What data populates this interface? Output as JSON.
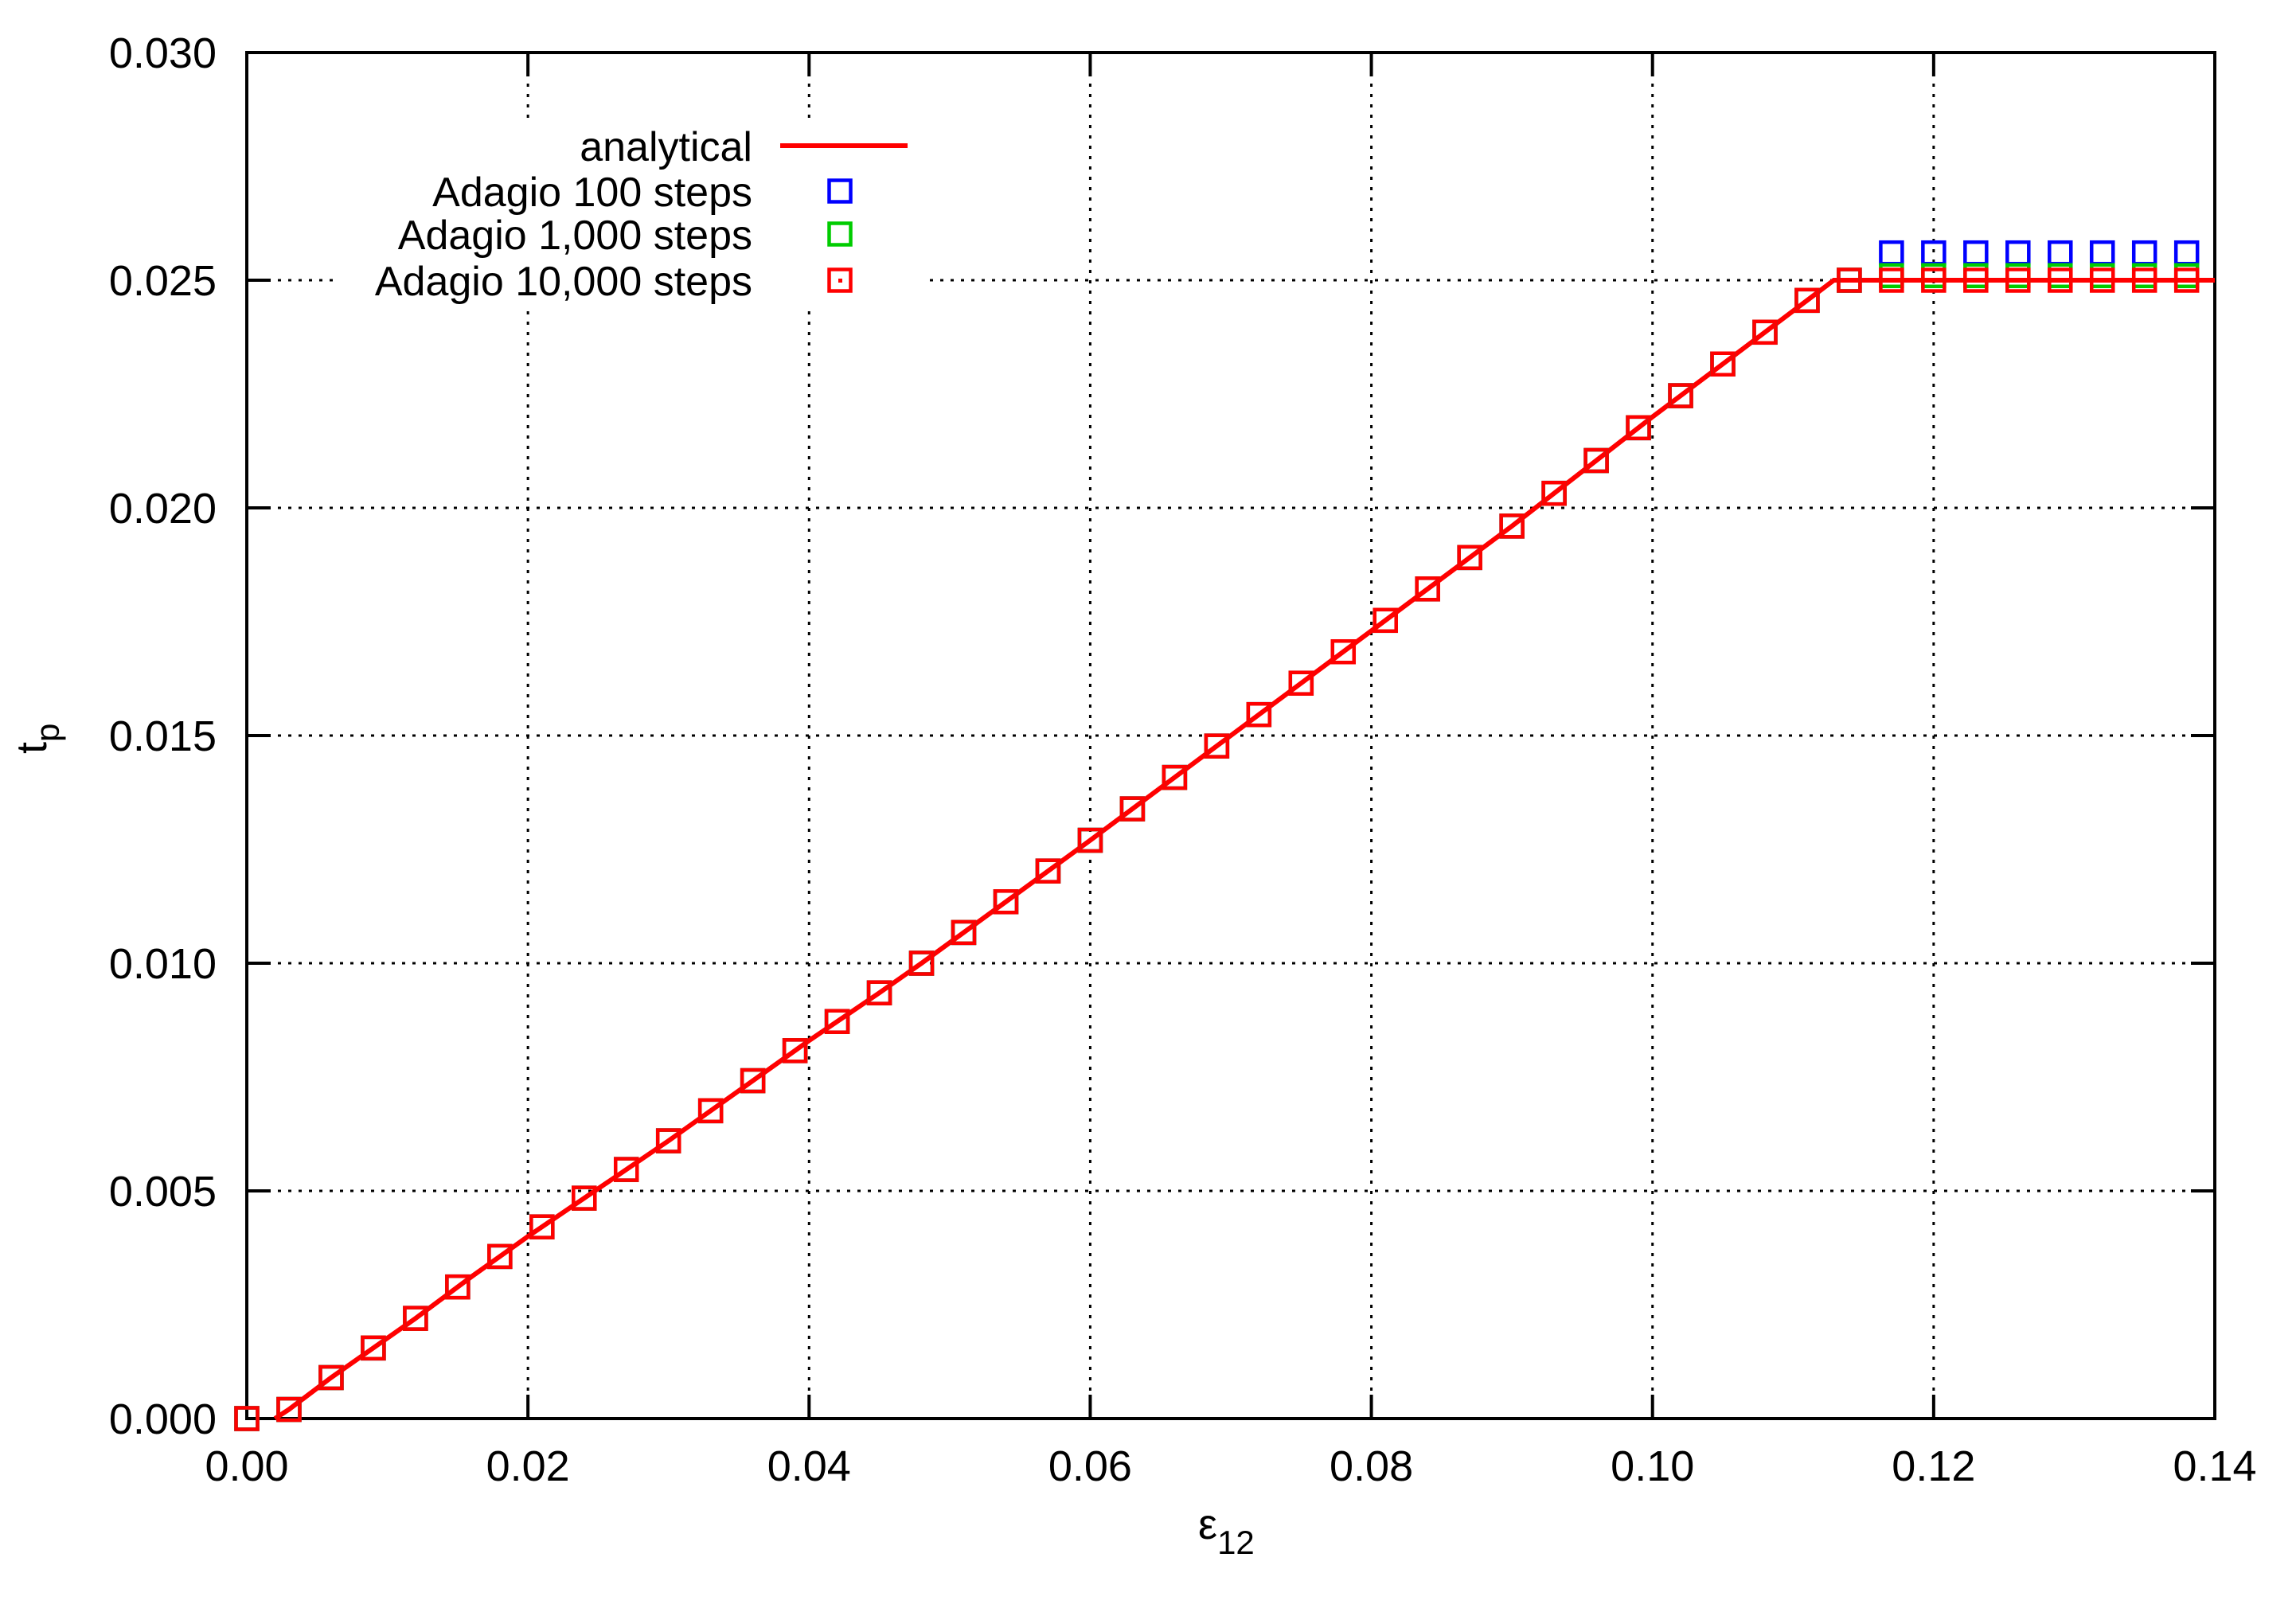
{
  "figure": {
    "background": "#ffffff",
    "border_color": "#000000"
  },
  "chart_data": {
    "type": "line",
    "title": "",
    "xlabel": "ε12",
    "xlabel_main": "ε",
    "xlabel_sub": "12",
    "ylabel": "tp",
    "ylabel_main": "t",
    "ylabel_sub": "p",
    "xlim": [
      0.0,
      0.14
    ],
    "ylim": [
      0.0,
      0.03
    ],
    "x_ticks": [
      0.0,
      0.02,
      0.04,
      0.06,
      0.08,
      0.1,
      0.12,
      0.14
    ],
    "x_tick_labels": [
      "0.00",
      "0.02",
      "0.04",
      "0.06",
      "0.08",
      "0.10",
      "0.12",
      "0.14"
    ],
    "y_ticks": [
      0.0,
      0.005,
      0.01,
      0.015,
      0.02,
      0.025,
      0.03
    ],
    "y_tick_labels": [
      "0.000",
      "0.005",
      "0.010",
      "0.015",
      "0.020",
      "0.025",
      "0.030"
    ],
    "grid": {
      "on": true,
      "style": "dotted",
      "color": "#000000",
      "x_lines": [
        0.02,
        0.04,
        0.06,
        0.08,
        0.1,
        0.12
      ],
      "y_lines": [
        0.005,
        0.01,
        0.015,
        0.02,
        0.025
      ]
    },
    "legend": {
      "position": "top-left-inside",
      "items": [
        {
          "label": "analytical",
          "color": "#ff0000",
          "sample": "line"
        },
        {
          "label": "Adagio 100 steps",
          "color": "#0000ff",
          "sample": "open-square"
        },
        {
          "label": "Adagio 1,000 steps",
          "color": "#00cc00",
          "sample": "open-square"
        },
        {
          "label": "Adagio 10,000 steps",
          "color": "#ff0000",
          "sample": "open-square-dot"
        }
      ]
    },
    "analytical_line": {
      "name": "analytical",
      "color": "#ff0000",
      "points": [
        [
          0.002,
          0.0
        ],
        [
          0.003,
          0.0002
        ],
        [
          0.006,
          0.0009
        ],
        [
          0.009,
          0.00155
        ],
        [
          0.012,
          0.0022
        ],
        [
          0.016,
          0.00312
        ],
        [
          0.02,
          0.004
        ],
        [
          0.025,
          0.00505
        ],
        [
          0.03,
          0.0061
        ],
        [
          0.035,
          0.0072
        ],
        [
          0.04,
          0.0083
        ],
        [
          0.045,
          0.00935
        ],
        [
          0.048,
          0.01
        ],
        [
          0.054,
          0.01135
        ],
        [
          0.06,
          0.0127
        ],
        [
          0.065,
          0.01385
        ],
        [
          0.07,
          0.015
        ],
        [
          0.075,
          0.01615
        ],
        [
          0.08,
          0.0173
        ],
        [
          0.085,
          0.01845
        ],
        [
          0.09,
          0.0196
        ],
        [
          0.095,
          0.0208
        ],
        [
          0.1,
          0.022
        ],
        [
          0.105,
          0.02316
        ],
        [
          0.1129,
          0.025
        ],
        [
          0.14,
          0.025
        ]
      ]
    },
    "series_x_values": [
      0.0,
      0.003,
      0.006,
      0.009,
      0.012,
      0.015,
      0.018,
      0.021,
      0.024,
      0.027,
      0.03,
      0.033,
      0.036,
      0.039,
      0.042,
      0.045,
      0.048,
      0.051,
      0.054,
      0.057,
      0.06,
      0.063,
      0.066,
      0.069,
      0.072,
      0.075,
      0.078,
      0.081,
      0.084,
      0.087,
      0.09,
      0.093,
      0.096,
      0.099,
      0.102,
      0.105,
      0.108,
      0.111,
      0.114,
      0.117,
      0.12,
      0.123,
      0.126,
      0.129,
      0.132,
      0.135,
      0.138
    ],
    "series": [
      {
        "name": "Adagio 100 steps",
        "color": "#0000ff",
        "marker": "open-square",
        "y_rule": "analytical",
        "plateau_from_x": 0.117,
        "plateau_y": 0.0256,
        "note": "coincides with analytical curve (hidden under other series) until plateau; overshoots plateau at 0.0256"
      },
      {
        "name": "Adagio 1,000 steps",
        "color": "#00cc00",
        "marker": "open-square",
        "y_rule": "analytical",
        "plateau_from_x": 0.117,
        "plateau_y": 0.0251,
        "note": "coincides with analytical curve until plateau; slight overshoot at 0.0251 visible as green slivers behind red squares"
      },
      {
        "name": "Adagio 10,000 steps",
        "color": "#ff0000",
        "marker": "open-square",
        "y_rule": "analytical",
        "plateau_from_x": 0.1129,
        "plateau_y": 0.025,
        "note": "matches analytical solution, plateau at 0.025"
      }
    ]
  }
}
